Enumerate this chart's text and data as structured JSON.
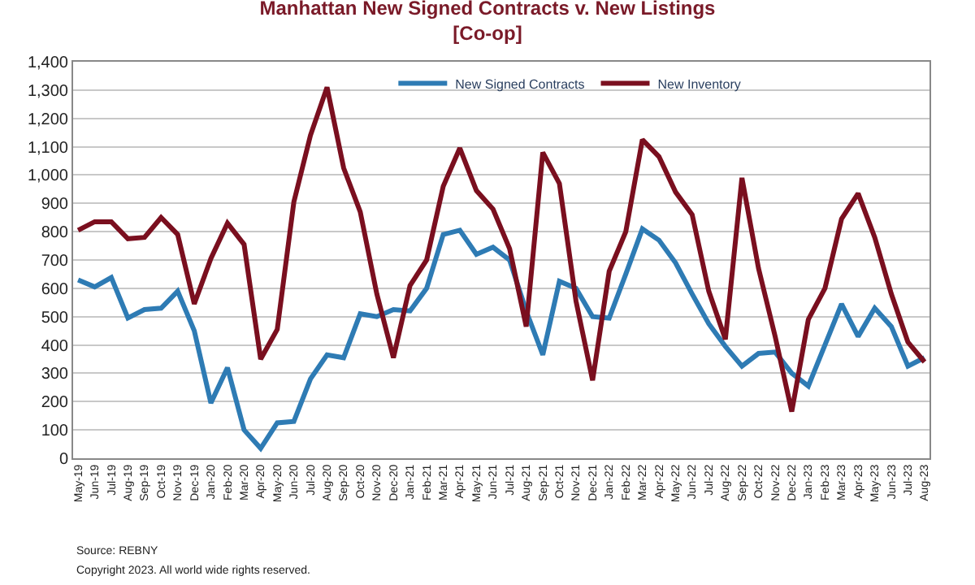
{
  "chart_data": {
    "type": "line",
    "title": "Manhattan New Signed Contracts v. New Listings",
    "subtitle": "[Co-op]",
    "categories": [
      "May-19",
      "Jun-19",
      "Jul-19",
      "Aug-19",
      "Sep-19",
      "Oct-19",
      "Nov-19",
      "Dec-19",
      "Jan-20",
      "Feb-20",
      "Mar-20",
      "Apr-20",
      "May-20",
      "Jun-20",
      "Jul-20",
      "Aug-20",
      "Sep-20",
      "Oct-20",
      "Nov-20",
      "Dec-20",
      "Jan-21",
      "Feb-21",
      "Mar-21",
      "Apr-21",
      "May-21",
      "Jun-21",
      "Jul-21",
      "Aug-21",
      "Sep-21",
      "Oct-21",
      "Nov-21",
      "Dec-21",
      "Jan-22",
      "Feb-22",
      "Mar-22",
      "Apr-22",
      "May-22",
      "Jun-22",
      "Jul-22",
      "Aug-22",
      "Sep-22",
      "Oct-22",
      "Nov-22",
      "Dec-22",
      "Jan-23",
      "Feb-23",
      "Mar-23",
      "Apr-23",
      "May-23",
      "Jun-23",
      "Jul-23",
      "Aug-23"
    ],
    "series": [
      {
        "name": "New Signed Contracts",
        "color": "#2e7bb4",
        "values": [
          630,
          605,
          638,
          495,
          525,
          530,
          590,
          450,
          195,
          320,
          100,
          35,
          125,
          130,
          280,
          365,
          355,
          510,
          500,
          525,
          520,
          600,
          790,
          805,
          720,
          745,
          700,
          520,
          365,
          625,
          600,
          500,
          495,
          650,
          810,
          770,
          690,
          580,
          475,
          395,
          325,
          370,
          375,
          300,
          255,
          400,
          545,
          430,
          530,
          465,
          325,
          355
        ]
      },
      {
        "name": "New Inventory",
        "color": "#7a0f1f",
        "values": [
          805,
          835,
          835,
          775,
          780,
          850,
          790,
          545,
          705,
          830,
          755,
          350,
          455,
          905,
          1140,
          1310,
          1025,
          870,
          580,
          355,
          610,
          700,
          960,
          1095,
          945,
          880,
          740,
          465,
          1080,
          970,
          555,
          275,
          660,
          800,
          1125,
          1065,
          940,
          860,
          590,
          420,
          990,
          670,
          430,
          165,
          490,
          600,
          845,
          935,
          780,
          580,
          410,
          340
        ]
      }
    ],
    "ylim": [
      0,
      1400
    ],
    "yticks": [
      0,
      {
        "value": 100,
        "label": "100"
      },
      200,
      300,
      400,
      500,
      600,
      700,
      800,
      900,
      {
        "value": 1000,
        "label": "1,000"
      },
      {
        "value": 1100,
        "label": "1,100"
      },
      {
        "value": 1200,
        "label": "1,200"
      },
      {
        "value": 1300,
        "label": "1,300"
      },
      {
        "value": 1400,
        "label": "1,400"
      }
    ],
    "grid": "y",
    "legend": "top",
    "marker": "none",
    "line_style": "solid",
    "annotations": [
      "Source: REBNY",
      "Copyright 2023. All world wide rights reserved."
    ]
  }
}
